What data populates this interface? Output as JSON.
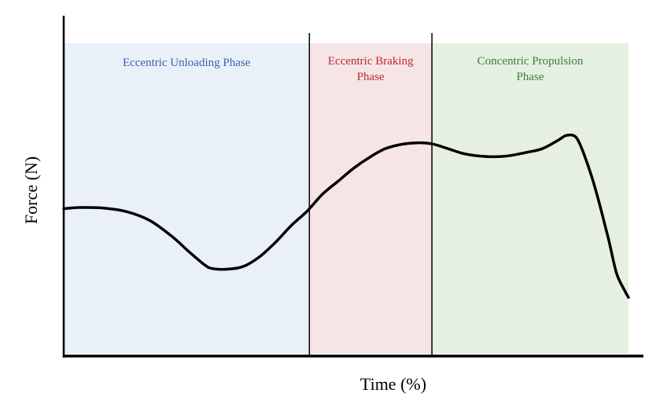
{
  "chart_data": {
    "type": "line",
    "xlabel": "Time (%)",
    "ylabel": "Force (N)",
    "xlim": [
      0,
      100
    ],
    "ylim": [
      0,
      100
    ],
    "grid": false,
    "phases": [
      {
        "lines": [
          "Eccentric Unloading Phase"
        ],
        "x_start": 0,
        "x_end": 43.5,
        "fill": "#eaf0f8",
        "text_color": "#3a64a8"
      },
      {
        "lines": [
          "Eccentric Braking",
          "Phase"
        ],
        "x_start": 43.5,
        "x_end": 65.2,
        "fill": "#f5e5e6",
        "text_color": "#c0272d"
      },
      {
        "lines": [
          "Concentric Propulsion",
          "Phase"
        ],
        "x_start": 65.2,
        "x_end": 100,
        "fill": "#e6f0e2",
        "text_color": "#3a7a3a"
      }
    ],
    "series": [
      {
        "color": "#000000",
        "x": [
          0,
          2.8,
          6.9,
          11.1,
          15.3,
          19.4,
          22.2,
          25,
          26.4,
          29.2,
          31.9,
          34.7,
          37.5,
          40.3,
          43.1,
          45.8,
          48.6,
          51.4,
          54.2,
          56.9,
          59.7,
          62.5,
          65.3,
          68.1,
          70.8,
          73.6,
          76.4,
          79.2,
          81.9,
          84.7,
          87.5,
          88.9,
          90.3,
          91.2,
          92.4,
          93.8,
          95.1,
          96.5,
          97.9,
          99.3,
          100
        ],
        "y": [
          49,
          49.5,
          49.3,
          47.8,
          44,
          37,
          31,
          25.5,
          24,
          23.8,
          25,
          29,
          35,
          42,
          48,
          55,
          60.5,
          66,
          70.5,
          74,
          75.8,
          76.5,
          76,
          74,
          72,
          71,
          70.7,
          71.2,
          72.5,
          74,
          77.5,
          79.5,
          79.5,
          77,
          70,
          60,
          49,
          36,
          22,
          15,
          12
        ]
      }
    ]
  }
}
